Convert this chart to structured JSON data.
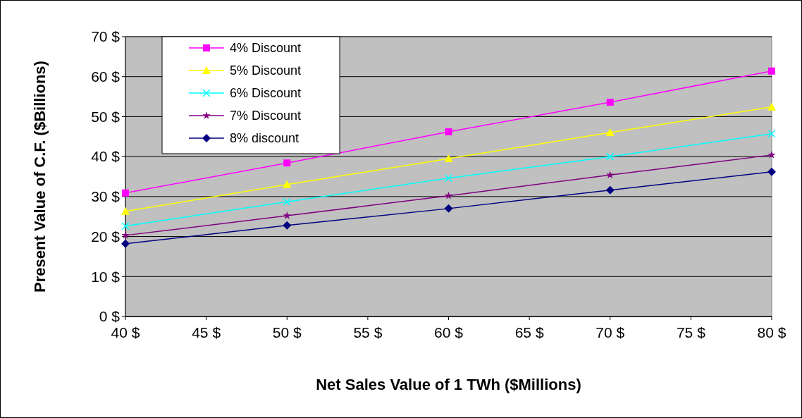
{
  "chart_data": {
    "type": "line",
    "xlabel": "Net Sales Value of 1 TWh ($Millions)",
    "ylabel": "Present Value of C.F. ($Billions)",
    "x": [
      40,
      50,
      60,
      70,
      80
    ],
    "series": [
      {
        "name": "4% Discount",
        "color": "#ff00ff",
        "marker": "square",
        "values": [
          30.9,
          38.4,
          46.2,
          53.6,
          61.4
        ]
      },
      {
        "name": "5% Discount",
        "color": "#ffff00",
        "marker": "triangle",
        "values": [
          26.3,
          33.0,
          39.5,
          46.0,
          52.4
        ]
      },
      {
        "name": "6% Discount",
        "color": "#00ffff",
        "marker": "cross",
        "values": [
          22.6,
          28.7,
          34.6,
          40.0,
          45.7
        ]
      },
      {
        "name": "7% Discount",
        "color": "#800080",
        "marker": "star",
        "values": [
          20.3,
          25.2,
          30.2,
          35.4,
          40.4
        ]
      },
      {
        "name": "8% discount",
        "color": "#000080",
        "marker": "diamond",
        "values": [
          18.2,
          22.8,
          27.0,
          31.6,
          36.2
        ]
      }
    ],
    "xlim": [
      40,
      80
    ],
    "xticks": [
      {
        "value": 40,
        "label": "40 $"
      },
      {
        "value": 45,
        "label": "45 $"
      },
      {
        "value": 50,
        "label": "50 $"
      },
      {
        "value": 55,
        "label": "55 $"
      },
      {
        "value": 60,
        "label": "60 $"
      },
      {
        "value": 65,
        "label": "65 $"
      },
      {
        "value": 70,
        "label": "70 $"
      },
      {
        "value": 75,
        "label": "75 $"
      },
      {
        "value": 80,
        "label": "80 $"
      }
    ],
    "ylim": [
      0,
      70
    ],
    "yticks": [
      {
        "value": 0,
        "label": "0 $"
      },
      {
        "value": 10,
        "label": "10 $"
      },
      {
        "value": 20,
        "label": "20 $"
      },
      {
        "value": 30,
        "label": "30 $"
      },
      {
        "value": 40,
        "label": "40 $"
      },
      {
        "value": 50,
        "label": "50 $"
      },
      {
        "value": 60,
        "label": "60 $"
      },
      {
        "value": 70,
        "label": "70 $"
      }
    ],
    "grid": "y",
    "legend": "top left"
  }
}
